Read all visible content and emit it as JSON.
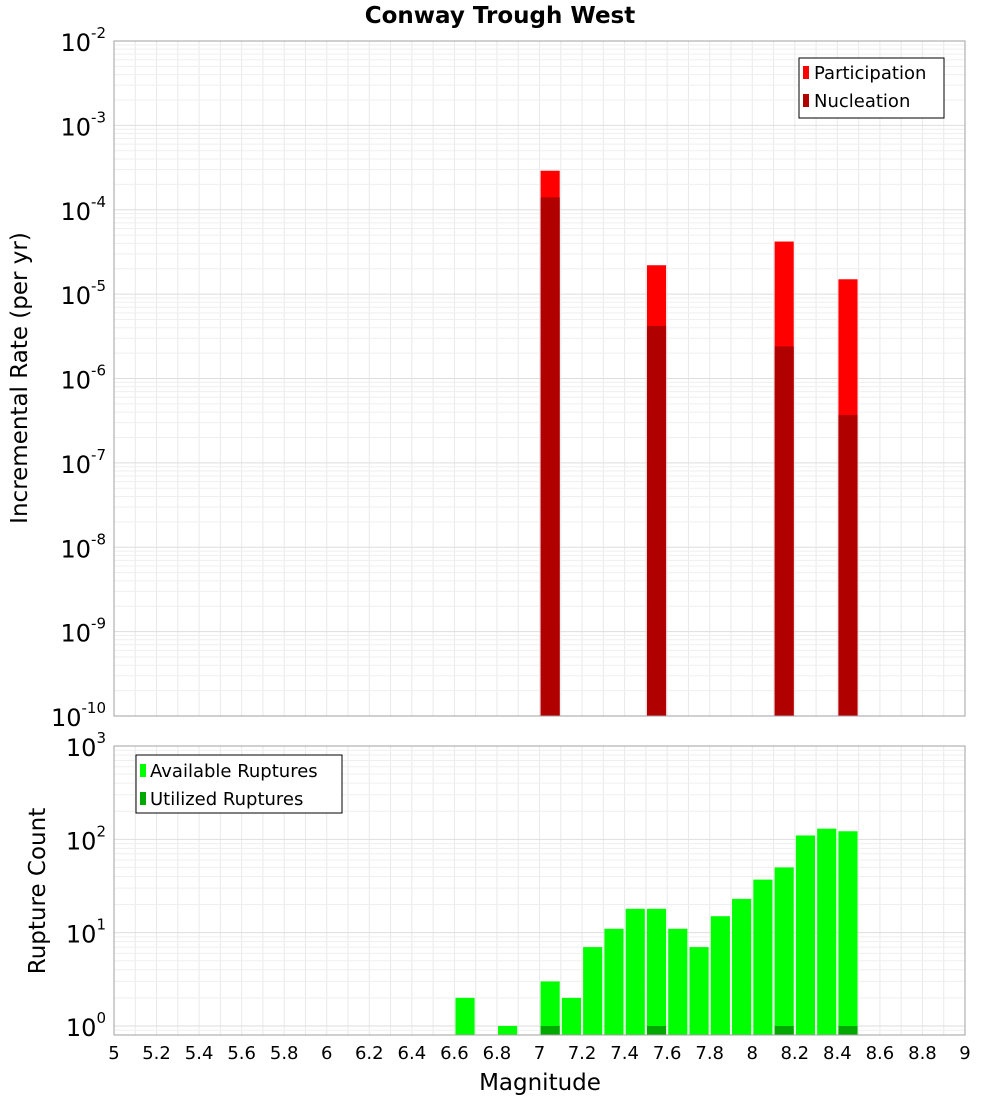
{
  "chart_data": [
    {
      "type": "bar",
      "title": "Conway Trough West",
      "ylabel": "Incremental Rate (per yr)",
      "xlabel": "",
      "yscale": "log",
      "ylim": [
        1e-10,
        0.01
      ],
      "xlim": [
        5,
        9
      ],
      "ytick_base": "10",
      "yticks": [
        {
          "value": 1e-10,
          "exp": "-10"
        },
        {
          "value": 1e-09,
          "exp": "-9"
        },
        {
          "value": 1e-08,
          "exp": "-8"
        },
        {
          "value": 1e-07,
          "exp": "-7"
        },
        {
          "value": 1e-06,
          "exp": "-6"
        },
        {
          "value": 1e-05,
          "exp": "-5"
        },
        {
          "value": 0.0001,
          "exp": "-4"
        },
        {
          "value": 0.001,
          "exp": "-3"
        },
        {
          "value": 0.01,
          "exp": "-2"
        }
      ],
      "bar_width": 0.09,
      "legend": {
        "position": "top-right",
        "entries": [
          "Participation",
          "Nucleation"
        ]
      },
      "series": [
        {
          "name": "Participation",
          "color": "#ff0000",
          "points": [
            {
              "x": 7.05,
              "y": 0.00029
            },
            {
              "x": 7.55,
              "y": 2.2e-05
            },
            {
              "x": 8.15,
              "y": 4.2e-05
            },
            {
              "x": 8.45,
              "y": 1.5e-05
            }
          ]
        },
        {
          "name": "Nucleation",
          "color": "#b00000",
          "points": [
            {
              "x": 7.05,
              "y": 0.00014
            },
            {
              "x": 7.55,
              "y": 4.2e-06
            },
            {
              "x": 8.15,
              "y": 2.4e-06
            },
            {
              "x": 8.45,
              "y": 3.7e-07
            }
          ]
        }
      ]
    },
    {
      "type": "bar",
      "title": "",
      "ylabel": "Rupture Count",
      "xlabel": "Magnitude",
      "yscale": "log",
      "ylim": [
        0.8,
        1000
      ],
      "xlim": [
        5,
        9
      ],
      "ytick_base": "10",
      "yticks": [
        {
          "value": 1,
          "exp": "0"
        },
        {
          "value": 10,
          "exp": "1"
        },
        {
          "value": 100,
          "exp": "2"
        },
        {
          "value": 1000,
          "exp": "3"
        }
      ],
      "xticks": [
        "5",
        "5.2",
        "5.4",
        "5.6",
        "5.8",
        "6",
        "6.2",
        "6.4",
        "6.6",
        "6.8",
        "7",
        "7.2",
        "7.4",
        "7.6",
        "7.8",
        "8",
        "8.2",
        "8.4",
        "8.6",
        "8.8",
        "9"
      ],
      "bar_width": 0.09,
      "legend": {
        "position": "top-left",
        "entries": [
          "Available Ruptures",
          "Utilized Ruptures"
        ]
      },
      "series": [
        {
          "name": "Available Ruptures",
          "color": "#00ff00",
          "points": [
            {
              "x": 6.65,
              "y": 2
            },
            {
              "x": 6.85,
              "y": 1
            },
            {
              "x": 7.05,
              "y": 3
            },
            {
              "x": 7.15,
              "y": 2
            },
            {
              "x": 7.25,
              "y": 7
            },
            {
              "x": 7.35,
              "y": 11
            },
            {
              "x": 7.45,
              "y": 18
            },
            {
              "x": 7.55,
              "y": 18
            },
            {
              "x": 7.65,
              "y": 11
            },
            {
              "x": 7.75,
              "y": 7
            },
            {
              "x": 7.85,
              "y": 15
            },
            {
              "x": 7.95,
              "y": 23
            },
            {
              "x": 8.05,
              "y": 37
            },
            {
              "x": 8.15,
              "y": 50
            },
            {
              "x": 8.25,
              "y": 110
            },
            {
              "x": 8.35,
              "y": 130
            },
            {
              "x": 8.45,
              "y": 122
            }
          ]
        },
        {
          "name": "Utilized Ruptures",
          "color": "#00a800",
          "points": [
            {
              "x": 7.05,
              "y": 1
            },
            {
              "x": 7.55,
              "y": 1
            },
            {
              "x": 8.15,
              "y": 1
            },
            {
              "x": 8.45,
              "y": 1
            }
          ]
        }
      ]
    }
  ]
}
